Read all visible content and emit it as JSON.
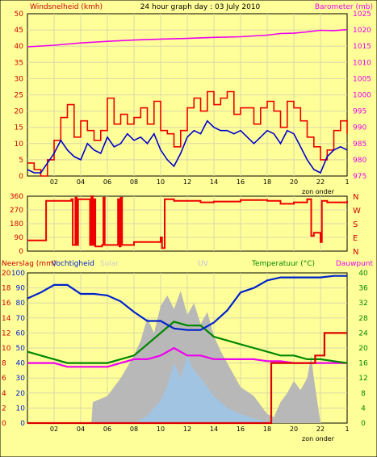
{
  "header": {
    "title": "24 hour graph day : 03 July 2010",
    "wind_label": "Windsnelheid (kmh)",
    "baro_label": "Barometer (mb)"
  },
  "colors": {
    "background": "#FFFF99",
    "plot": "#FFFF99",
    "grid": "#D8D8A8",
    "wind_avg": "#0000CC",
    "wind_gust": "#EE0000",
    "barometer": "#EE00EE",
    "direction": "#EE0000",
    "humidity": "#0022CC",
    "temperature": "#008800",
    "dewpoint": "#EE00EE",
    "rain": "#DD0000",
    "solar": "#B8B8B8",
    "uv": "#9CC7EE"
  },
  "chart_data": [
    {
      "id": "wind-baro",
      "type": "line",
      "title": "24 hour graph day : 03 July 2010",
      "xlabel": "zon onder",
      "x_ticks": [
        "02",
        "04",
        "06",
        "08",
        "10",
        "12",
        "14",
        "16",
        "18",
        "20",
        "22",
        "1"
      ],
      "y_left_label": "Windsnelheid (kmh)",
      "y_left_ticks": [
        0,
        5,
        10,
        15,
        20,
        25,
        30,
        35,
        40,
        45,
        50
      ],
      "ylim_left": [
        0,
        50
      ],
      "y_right_label": "Barometer (mb)",
      "y_right_ticks": [
        975,
        980,
        985,
        990,
        995,
        1000,
        1005,
        1010,
        1015,
        1020,
        1025
      ],
      "ylim_right": [
        975,
        1025
      ],
      "xlim": [
        0,
        24
      ],
      "series": [
        {
          "axis": "left",
          "color": "wind_gust",
          "step": true,
          "x": [
            0,
            0.5,
            1,
            1.5,
            2,
            2.5,
            3,
            3.5,
            4,
            4.5,
            5,
            5.5,
            6,
            6.5,
            7,
            7.5,
            8,
            8.5,
            9,
            9.5,
            10,
            10.5,
            11,
            11.5,
            12,
            12.5,
            13,
            13.5,
            14,
            14.5,
            15,
            15.5,
            16,
            16.5,
            17,
            17.5,
            18,
            18.5,
            19,
            19.5,
            20,
            20.5,
            21,
            21.5,
            22,
            22.5,
            23,
            23.5,
            24
          ],
          "y": [
            4,
            2,
            0,
            5,
            11,
            18,
            22,
            12,
            17,
            14,
            11,
            14,
            24,
            16,
            19,
            16,
            18,
            21,
            16,
            23,
            14,
            13,
            9,
            14,
            21,
            24,
            20,
            26,
            22,
            24,
            26,
            19,
            21,
            21,
            16,
            21,
            23,
            20,
            15,
            23,
            21,
            17,
            12,
            9,
            5,
            8,
            14,
            17,
            13
          ]
        },
        {
          "axis": "left",
          "color": "wind_avg",
          "step": false,
          "x": [
            0,
            0.5,
            1,
            1.5,
            2,
            2.5,
            3,
            3.5,
            4,
            4.5,
            5,
            5.5,
            6,
            6.5,
            7,
            7.5,
            8,
            8.5,
            9,
            9.5,
            10,
            10.5,
            11,
            11.5,
            12,
            12.5,
            13,
            13.5,
            14,
            14.5,
            15,
            15.5,
            16,
            16.5,
            17,
            17.5,
            18,
            18.5,
            19,
            19.5,
            20,
            20.5,
            21,
            21.5,
            22,
            22.5,
            23,
            23.5,
            24
          ],
          "y": [
            2,
            1,
            1,
            4,
            7,
            11,
            8,
            6,
            5,
            10,
            8,
            7,
            12,
            9,
            10,
            13,
            11,
            12,
            10,
            13,
            8,
            5,
            3,
            7,
            12,
            14,
            13,
            17,
            15,
            14,
            14,
            13,
            14,
            12,
            10,
            12,
            14,
            13,
            10,
            14,
            13,
            9,
            5,
            2,
            1,
            6,
            8,
            9,
            8
          ]
        },
        {
          "axis": "right",
          "color": "barometer",
          "step": false,
          "x": [
            0,
            2,
            4,
            6,
            8,
            10,
            12,
            14,
            16,
            18,
            19,
            20,
            21,
            22,
            23,
            24
          ],
          "y": [
            1014.8,
            1015.3,
            1016.0,
            1016.5,
            1016.9,
            1017.2,
            1017.4,
            1017.7,
            1017.9,
            1018.4,
            1018.9,
            1019.0,
            1019.4,
            1019.9,
            1019.8,
            1020.1
          ]
        }
      ]
    },
    {
      "id": "direction",
      "type": "line",
      "y_left_ticks": [
        0,
        90,
        180,
        270,
        360
      ],
      "ylim": [
        0,
        360
      ],
      "y_right_labels": [
        "N",
        "W",
        "S",
        "E",
        "N"
      ],
      "xlim": [
        0,
        24
      ],
      "xlabel": "zon onder",
      "x_ticks": [
        "02",
        "04",
        "06",
        "08",
        "10",
        "12",
        "14",
        "16",
        "18",
        "20",
        "22",
        "1"
      ],
      "series": [
        {
          "color": "direction",
          "step": true,
          "x": [
            0,
            1.2,
            1.4,
            3.3,
            3.4,
            3.6,
            3.7,
            3.8,
            4.7,
            4.8,
            4.9,
            5.0,
            5.1,
            5.6,
            5.7,
            5.8,
            6.8,
            6.9,
            7.0,
            7.1,
            8,
            10.0,
            10.1,
            10.3,
            11,
            13,
            14,
            16,
            18,
            19,
            20,
            21,
            21.3,
            21.5,
            22.0,
            22.1,
            22.5,
            24
          ],
          "y": [
            70,
            70,
            330,
            340,
            40,
            350,
            40,
            340,
            40,
            360,
            40,
            340,
            30,
            40,
            350,
            40,
            340,
            30,
            350,
            40,
            60,
            90,
            20,
            340,
            330,
            320,
            325,
            335,
            330,
            310,
            320,
            340,
            100,
            120,
            60,
            330,
            320,
            330
          ]
        }
      ]
    },
    {
      "id": "humidity-temp",
      "type": "line",
      "xlim": [
        0,
        24
      ],
      "xlabel": "zon onder",
      "x_ticks": [
        "02",
        "04",
        "06",
        "08",
        "10",
        "12",
        "14",
        "16",
        "18",
        "20",
        "22",
        "1"
      ],
      "left_labels": {
        "rain": "Neerslag (mm)",
        "humidity": "Vochtigheid",
        "solar": "Solar",
        "uv": "UV"
      },
      "right_labels": {
        "temperature": "Temperatuur (°C)",
        "dewpoint": "Dauwpunt"
      },
      "y_left_ticks_humidity": [
        0,
        10,
        20,
        30,
        40,
        50,
        60,
        70,
        80,
        90,
        100
      ],
      "y_left_ticks_rain": [
        0,
        2,
        4,
        6,
        8,
        10,
        12,
        14,
        16,
        18,
        20
      ],
      "y_right_ticks": [
        0,
        4,
        8,
        12,
        16,
        20,
        24,
        28,
        32,
        36,
        40
      ],
      "ylim_humidity": [
        0,
        100
      ],
      "ylim_temperature": [
        0,
        40
      ],
      "series": [
        {
          "name": "Vochtigheid",
          "color": "humidity",
          "x": [
            0,
            1,
            2,
            3,
            4,
            5,
            6,
            7,
            8,
            9,
            10,
            11,
            12,
            13,
            14,
            15,
            16,
            17,
            18,
            19,
            20,
            21,
            22,
            23,
            24
          ],
          "y": [
            83,
            87,
            92,
            92,
            86,
            86,
            85,
            81,
            74,
            68,
            68,
            63,
            62,
            62,
            67,
            75,
            87,
            90,
            95,
            97,
            97,
            97,
            97,
            98,
            98
          ]
        },
        {
          "name": "Temperatuur (°C)",
          "color": "temperature",
          "x": [
            0,
            1,
            2,
            3,
            4,
            5,
            6,
            7,
            8,
            9,
            10,
            11,
            12,
            13,
            14,
            15,
            16,
            17,
            18,
            19,
            20,
            21,
            22,
            23,
            24
          ],
          "y": [
            19,
            18,
            17,
            16,
            16,
            16,
            16,
            17,
            18,
            21,
            24,
            27,
            26,
            26,
            23,
            22,
            21,
            20,
            19,
            18,
            18,
            17,
            17,
            16.5,
            16
          ]
        },
        {
          "name": "Dauwpunt",
          "color": "dewpoint",
          "x": [
            0,
            1,
            2,
            3,
            4,
            5,
            6,
            7,
            8,
            9,
            10,
            11,
            12,
            13,
            14,
            15,
            16,
            17,
            18,
            19,
            20,
            21,
            22,
            23,
            24
          ],
          "y": [
            16,
            16,
            16,
            15,
            15,
            15,
            15,
            16,
            17,
            17,
            18,
            20,
            18,
            18,
            17,
            17,
            17,
            17,
            16.5,
            16.5,
            16,
            16,
            16,
            16,
            16
          ]
        },
        {
          "name": "Neerslag (mm)",
          "color": "rain",
          "step": true,
          "x": [
            0,
            18,
            18.3,
            20,
            21.5,
            21.6,
            22,
            22.3,
            23.5,
            24
          ],
          "y": [
            0,
            0,
            8,
            8,
            8,
            9,
            9,
            12,
            12,
            12
          ]
        },
        {
          "name": "Solar",
          "color": "solar",
          "kind": "area",
          "x": [
            0,
            4.8,
            4.9,
            6,
            7,
            8,
            8.5,
            9,
            9.5,
            10,
            10.5,
            11,
            11.5,
            12,
            12.5,
            13,
            13.5,
            14,
            14.5,
            15,
            16,
            17,
            17.5,
            18,
            18.5,
            19,
            19.5,
            20,
            20.5,
            21,
            21.3,
            21.5,
            22,
            22.5,
            23
          ],
          "y": [
            0,
            0,
            14,
            18,
            30,
            45,
            55,
            70,
            60,
            78,
            85,
            76,
            88,
            72,
            80,
            66,
            74,
            58,
            48,
            40,
            24,
            18,
            12,
            6,
            4,
            14,
            20,
            28,
            22,
            30,
            45,
            30,
            0,
            0,
            0
          ]
        },
        {
          "name": "UV",
          "color": "uv",
          "kind": "area",
          "x": [
            0,
            6,
            8,
            9,
            10,
            10.5,
            11,
            11.5,
            12,
            12.5,
            13,
            14,
            15,
            16,
            17,
            18,
            18.5,
            19,
            24
          ],
          "y": [
            0,
            0,
            0,
            5,
            15,
            25,
            40,
            30,
            45,
            35,
            30,
            18,
            10,
            6,
            3,
            1,
            0,
            0,
            0
          ]
        }
      ]
    }
  ]
}
